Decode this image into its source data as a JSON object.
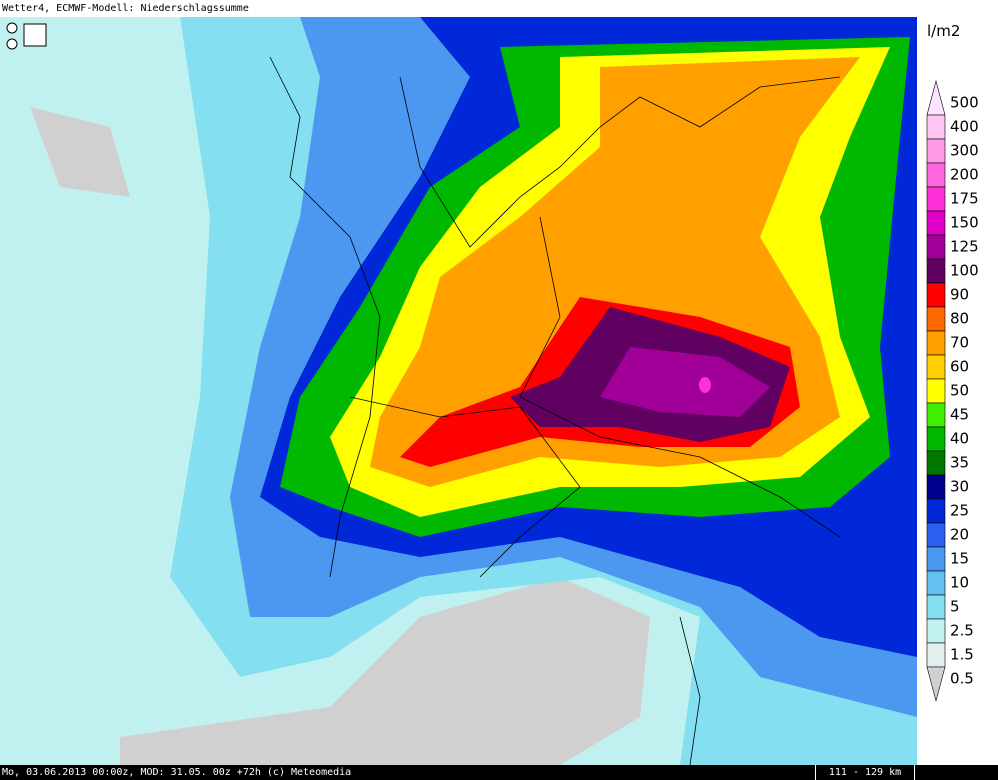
{
  "header": {
    "title": "Wetter4, ECMWF-Modell: Niederschlagssumme"
  },
  "legend": {
    "unit": "l/m2",
    "items": [
      {
        "label": "500",
        "color": "#ffe4ff"
      },
      {
        "label": "400",
        "color": "#ffc4f4"
      },
      {
        "label": "300",
        "color": "#ff9ae8"
      },
      {
        "label": "200",
        "color": "#ff66e0"
      },
      {
        "label": "175",
        "color": "#ff30d8"
      },
      {
        "label": "150",
        "color": "#e000c8"
      },
      {
        "label": "125",
        "color": "#a00098"
      },
      {
        "label": "100",
        "color": "#600060"
      },
      {
        "label": "90",
        "color": "#ff0000"
      },
      {
        "label": "80",
        "color": "#ff6a00"
      },
      {
        "label": "70",
        "color": "#ffa000"
      },
      {
        "label": "60",
        "color": "#ffd000"
      },
      {
        "label": "50",
        "color": "#ffff00"
      },
      {
        "label": "45",
        "color": "#40f000"
      },
      {
        "label": "40",
        "color": "#00b800"
      },
      {
        "label": "35",
        "color": "#007800"
      },
      {
        "label": "30",
        "color": "#000090"
      },
      {
        "label": "25",
        "color": "#0028d8"
      },
      {
        "label": "20",
        "color": "#2a60f0"
      },
      {
        "label": "15",
        "color": "#4c98f0"
      },
      {
        "label": "10",
        "color": "#64c0f0"
      },
      {
        "label": "5",
        "color": "#84e0f0"
      },
      {
        "label": "2.5",
        "color": "#c0f0f0"
      },
      {
        "label": "1.5",
        "color": "#e2f0f0"
      },
      {
        "label": "0.5",
        "color": "#d0d0d0"
      }
    ]
  },
  "footer": {
    "text": "Mo, 03.06.2013 00:00z, MOD: 31.05. 00z +72h (c) Meteomedia",
    "scale": "111 - 129 km"
  }
}
